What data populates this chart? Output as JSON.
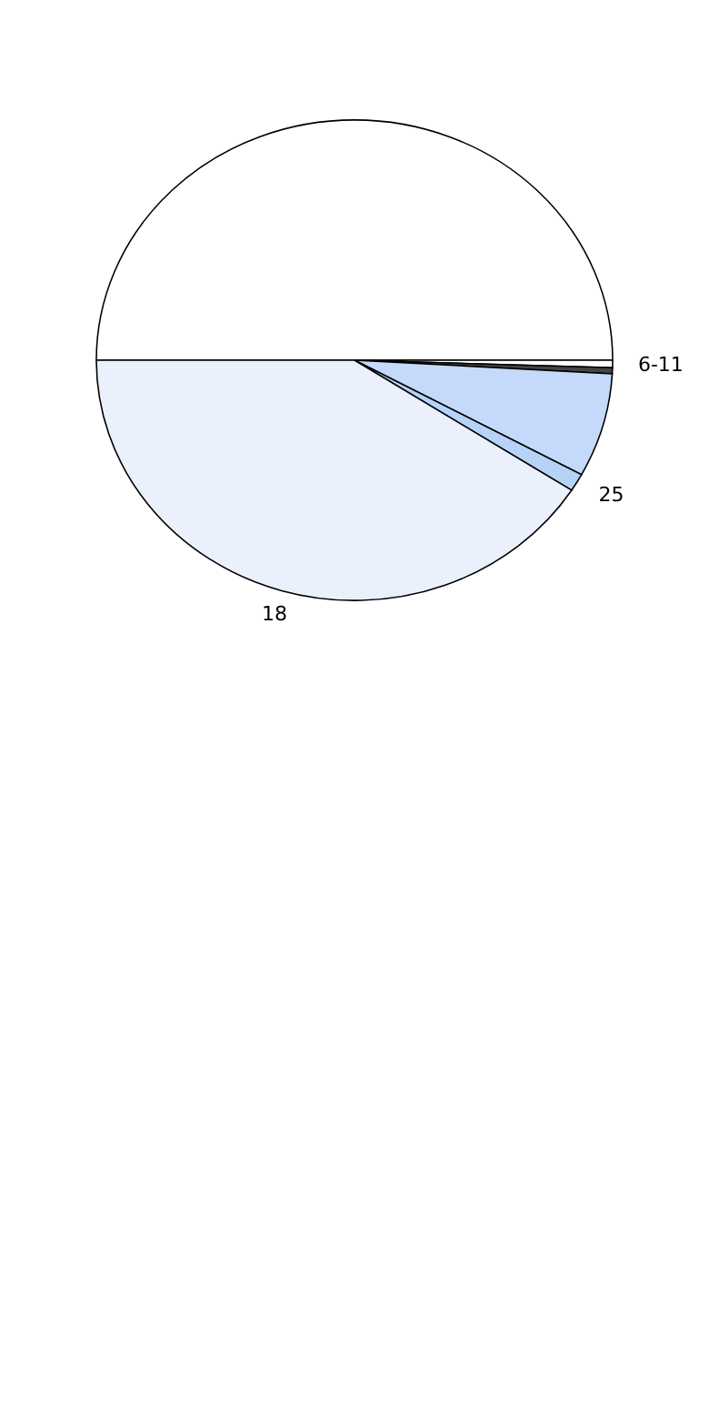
{
  "chart_data": {
    "type": "pie",
    "categories": [
      null,
      "6-11",
      null,
      null,
      "25",
      "18"
    ],
    "values": [
      50,
      0.5,
      0.4,
      7,
      1.2,
      40.9
    ],
    "colors": [
      "#ffffff",
      "#ffffff",
      "#444444",
      "#c5d9fb",
      "#b6d2f7",
      "#eaf1fd"
    ]
  }
}
